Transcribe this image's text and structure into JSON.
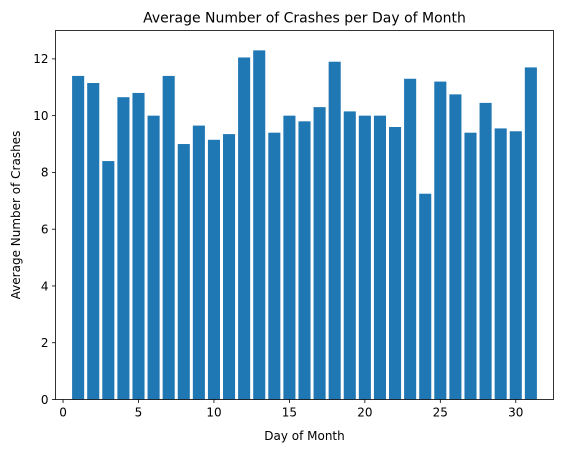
{
  "chart_data": {
    "type": "bar",
    "title": "Average Number of Crashes per Day of Month",
    "xlabel": "Day of Month",
    "ylabel": "Average Number of Crashes",
    "x": [
      1,
      2,
      3,
      4,
      5,
      6,
      7,
      8,
      9,
      10,
      11,
      12,
      13,
      14,
      15,
      16,
      17,
      18,
      19,
      20,
      21,
      22,
      23,
      24,
      25,
      26,
      27,
      28,
      29,
      30,
      31
    ],
    "values": [
      11.4,
      11.15,
      8.4,
      10.65,
      10.8,
      10.0,
      11.4,
      9.0,
      9.65,
      9.15,
      9.35,
      12.05,
      12.3,
      9.4,
      10.0,
      9.8,
      10.3,
      11.9,
      10.15,
      10.0,
      10.0,
      9.6,
      11.3,
      7.25,
      11.2,
      10.75,
      9.4,
      10.45,
      9.55,
      9.45,
      11.7
    ],
    "xlim": [
      -0.5,
      32.5
    ],
    "ylim": [
      0,
      13
    ],
    "xticks": [
      "0",
      "5",
      "10",
      "15",
      "20",
      "25",
      "30"
    ],
    "yticks": [
      "0",
      "2",
      "4",
      "6",
      "8",
      "10",
      "12"
    ],
    "bar_color": "#1f77b4",
    "grid": false,
    "legend": "none"
  }
}
